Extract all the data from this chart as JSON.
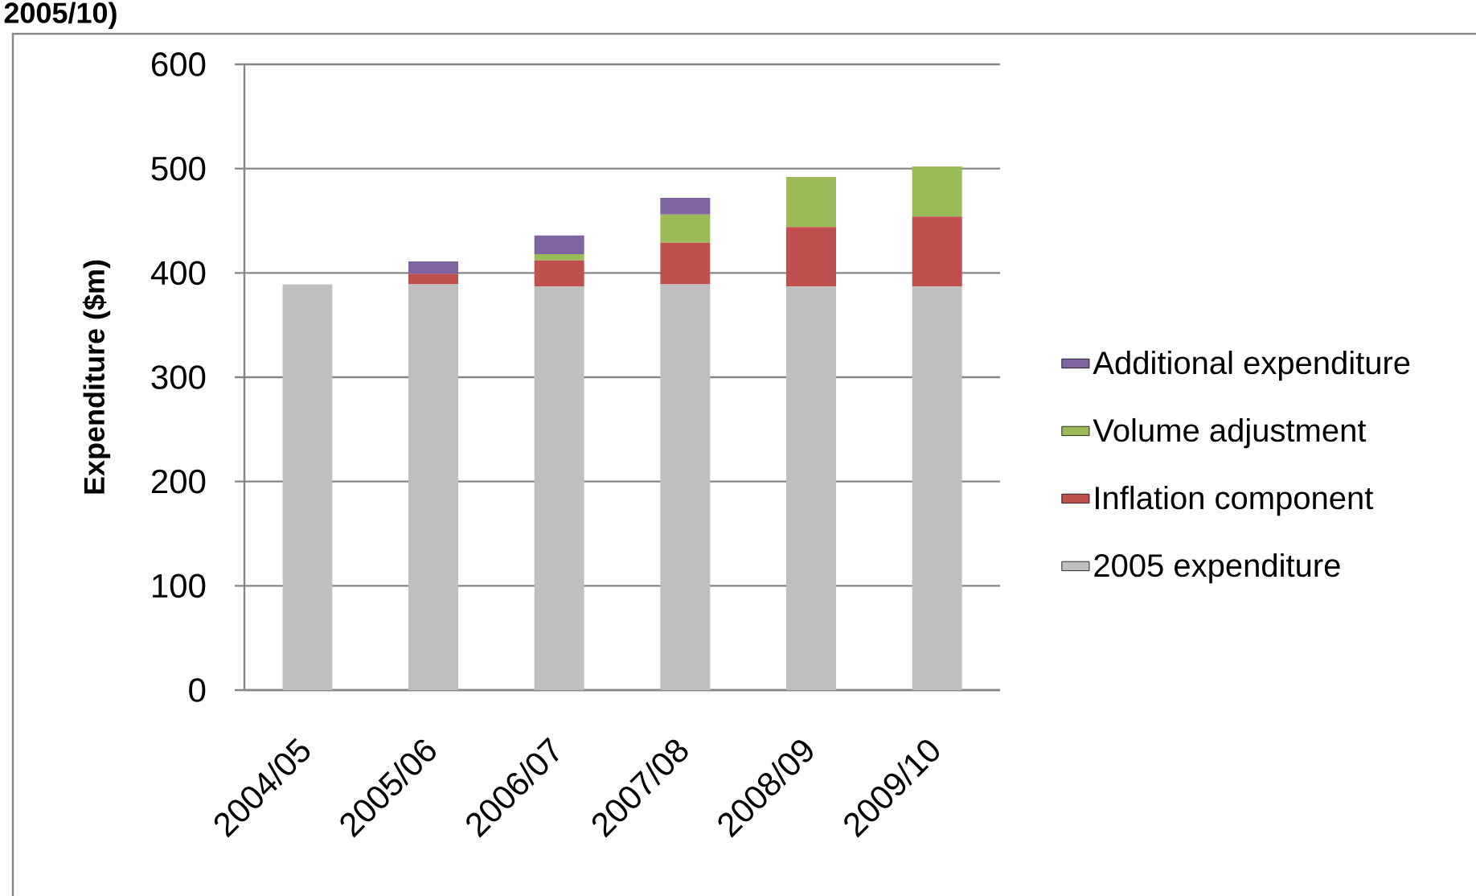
{
  "chart_data": {
    "type": "bar",
    "title": "2005/10)",
    "ylabel": "Expenditure ($m)",
    "categories": [
      "2004/05",
      "2005/06",
      "2006/07",
      "2007/08",
      "2008/09",
      "2009/10"
    ],
    "stacked": true,
    "series": [
      {
        "name": "2005 expenditure",
        "color": "#bfbfbf",
        "values": [
          389,
          389,
          387,
          389,
          387,
          387
        ]
      },
      {
        "name": "Inflation component",
        "color": "#c0504d",
        "values": [
          0,
          10,
          25,
          40,
          57,
          67
        ]
      },
      {
        "name": "Volume adjustment",
        "color": "#9bbb59",
        "values": [
          0,
          0,
          6,
          27,
          48,
          48
        ]
      },
      {
        "name": "Additional expenditure",
        "color": "#8064a2",
        "values": [
          0,
          12,
          18,
          16,
          0,
          0
        ]
      }
    ],
    "ylim": [
      0,
      600
    ],
    "yticks": [
      0,
      100,
      200,
      300,
      400,
      500,
      600
    ],
    "grid": "y",
    "legend": "right"
  }
}
